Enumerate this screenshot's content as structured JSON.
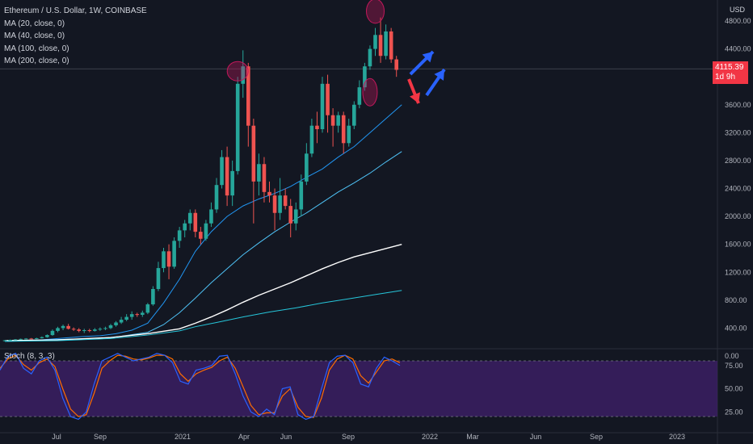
{
  "header": {
    "symbol_title": "Ethereum / U.S. Dollar, 1W, COINBASE",
    "indicators": [
      "MA (20, close, 0)",
      "MA (40, close, 0)",
      "MA (100, close, 0)",
      "MA (200, close, 0)"
    ]
  },
  "price_axis": {
    "currency": "USD",
    "ticks": [
      "4800.00",
      "4400.00",
      "3600.00",
      "3200.00",
      "2800.00",
      "2400.00",
      "2000.00",
      "1600.00",
      "1200.00",
      "800.00",
      "400.00",
      "0.00"
    ],
    "current_price": "4115.39",
    "countdown": "1d 9h"
  },
  "time_axis": {
    "ticks": [
      "Jul",
      "Sep",
      "2021",
      "Apr",
      "Jun",
      "Sep",
      "2022",
      "Mar",
      "Jun",
      "Sep",
      "2023"
    ]
  },
  "oscillator": {
    "label": "Stoch (8, 3, 3)",
    "ticks": [
      "75.00",
      "50.00",
      "25.00"
    ]
  },
  "colors": {
    "background": "#131722",
    "bull": "#26a69a",
    "bear": "#ef5350",
    "ma20": "#2196f3",
    "ma40": "#4fc3f7",
    "ma100": "#ffffff",
    "ma200": "#26c6da",
    "stoch_k": "#2962ff",
    "stoch_d": "#ff6d00",
    "stoch_band": "#3b1e63",
    "annotation_up": "#2962ff",
    "annotation_down": "#f23645",
    "highlight": "#c2185b"
  },
  "chart_data": {
    "type": "candlestick",
    "y_axis_range": [
      0,
      5000
    ],
    "candles": [
      [
        220,
        225,
        210,
        228
      ],
      [
        225,
        232,
        218,
        236
      ],
      [
        232,
        238,
        228,
        242
      ],
      [
        238,
        245,
        232,
        250
      ],
      [
        245,
        250,
        240,
        256
      ],
      [
        250,
        248,
        242,
        258
      ],
      [
        248,
        255,
        240,
        262
      ],
      [
        255,
        270,
        250,
        280
      ],
      [
        270,
        300,
        262,
        310
      ],
      [
        300,
        360,
        290,
        380
      ],
      [
        360,
        400,
        340,
        420
      ],
      [
        400,
        430,
        370,
        450
      ],
      [
        430,
        390,
        380,
        460
      ],
      [
        390,
        380,
        360,
        410
      ],
      [
        380,
        360,
        340,
        400
      ],
      [
        360,
        370,
        330,
        390
      ],
      [
        370,
        360,
        340,
        390
      ],
      [
        360,
        380,
        350,
        400
      ],
      [
        380,
        390,
        360,
        410
      ],
      [
        390,
        400,
        370,
        420
      ],
      [
        400,
        440,
        385,
        460
      ],
      [
        440,
        480,
        420,
        500
      ],
      [
        480,
        520,
        460,
        560
      ],
      [
        520,
        560,
        500,
        600
      ],
      [
        560,
        600,
        520,
        640
      ],
      [
        600,
        590,
        560,
        620
      ],
      [
        590,
        620,
        560,
        650
      ],
      [
        620,
        740,
        600,
        760
      ],
      [
        740,
        960,
        720,
        1000
      ],
      [
        960,
        1260,
        930,
        1350
      ],
      [
        1260,
        1500,
        1200,
        1550
      ],
      [
        1500,
        1280,
        1100,
        1600
      ],
      [
        1280,
        1650,
        1250,
        1700
      ],
      [
        1650,
        1800,
        1550,
        1850
      ],
      [
        1800,
        1900,
        1700,
        1950
      ],
      [
        1900,
        2050,
        1800,
        2100
      ],
      [
        2050,
        1780,
        1700,
        2100
      ],
      [
        1780,
        1680,
        1600,
        1850
      ],
      [
        1680,
        1900,
        1650,
        1950
      ],
      [
        1900,
        2100,
        1850,
        2200
      ],
      [
        2100,
        2450,
        2050,
        2550
      ],
      [
        2450,
        2850,
        2400,
        2950
      ],
      [
        2850,
        2300,
        2150,
        3000
      ],
      [
        2300,
        2650,
        2150,
        2800
      ],
      [
        2650,
        3900,
        2600,
        4000
      ],
      [
        3900,
        4150,
        3700,
        4380
      ],
      [
        4150,
        3300,
        3000,
        4200
      ],
      [
        3300,
        2500,
        1900,
        3400
      ],
      [
        2500,
        2750,
        2300,
        2900
      ],
      [
        2750,
        2350,
        2200,
        2850
      ],
      [
        2350,
        2300,
        2200,
        2500
      ],
      [
        2300,
        2050,
        1800,
        2400
      ],
      [
        2050,
        2300,
        1950,
        2550
      ],
      [
        2300,
        2150,
        2100,
        2400
      ],
      [
        2150,
        1900,
        1700,
        2250
      ],
      [
        1900,
        2100,
        1800,
        2200
      ],
      [
        2100,
        2500,
        2000,
        2600
      ],
      [
        2500,
        2900,
        2450,
        3050
      ],
      [
        2900,
        3300,
        2850,
        3400
      ],
      [
        3300,
        3250,
        3050,
        3500
      ],
      [
        3250,
        3900,
        3200,
        4000
      ],
      [
        3900,
        3450,
        3200,
        4030
      ],
      [
        3450,
        3300,
        3000,
        3550
      ],
      [
        3300,
        3450,
        3200,
        3500
      ],
      [
        3450,
        3050,
        2900,
        3500
      ],
      [
        3050,
        3300,
        3000,
        3400
      ],
      [
        3300,
        3600,
        3250,
        3650
      ],
      [
        3600,
        3850,
        3550,
        3950
      ],
      [
        3850,
        4150,
        3800,
        4200
      ],
      [
        4150,
        4400,
        4100,
        4450
      ],
      [
        4400,
        4600,
        4300,
        4700
      ],
      [
        4600,
        4300,
        4200,
        4850
      ],
      [
        4300,
        4650,
        4250,
        4750
      ],
      [
        4650,
        4250,
        4200,
        4700
      ],
      [
        4250,
        4100,
        4000,
        4300
      ]
    ],
    "ma_lines": {
      "MA20": [
        [
          0,
          210
        ],
        [
          5,
          220
        ],
        [
          10,
          250
        ],
        [
          15,
          280
        ],
        [
          18,
          290
        ],
        [
          21,
          320
        ],
        [
          24,
          370
        ],
        [
          27,
          470
        ],
        [
          30,
          760
        ],
        [
          33,
          1100
        ],
        [
          36,
          1500
        ],
        [
          39,
          1780
        ],
        [
          42,
          2000
        ],
        [
          45,
          2150
        ],
        [
          48,
          2250
        ],
        [
          51,
          2330
        ],
        [
          54,
          2430
        ],
        [
          57,
          2560
        ],
        [
          60,
          2680
        ],
        [
          63,
          2850
        ],
        [
          66,
          3000
        ],
        [
          69,
          3200
        ],
        [
          72,
          3400
        ],
        [
          75,
          3600
        ]
      ],
      "MA40": [
        [
          0,
          220
        ],
        [
          10,
          235
        ],
        [
          20,
          260
        ],
        [
          27,
          340
        ],
        [
          30,
          450
        ],
        [
          33,
          620
        ],
        [
          36,
          830
        ],
        [
          39,
          1050
        ],
        [
          42,
          1250
        ],
        [
          45,
          1450
        ],
        [
          48,
          1620
        ],
        [
          51,
          1780
        ],
        [
          54,
          1920
        ],
        [
          57,
          2050
        ],
        [
          60,
          2200
        ],
        [
          63,
          2350
        ],
        [
          66,
          2480
        ],
        [
          69,
          2620
        ],
        [
          72,
          2780
        ],
        [
          75,
          2930
        ]
      ],
      "MA100": [
        [
          0,
          220
        ],
        [
          10,
          230
        ],
        [
          20,
          265
        ],
        [
          27,
          320
        ],
        [
          33,
          390
        ],
        [
          36,
          470
        ],
        [
          39,
          560
        ],
        [
          42,
          660
        ],
        [
          45,
          770
        ],
        [
          48,
          870
        ],
        [
          51,
          960
        ],
        [
          54,
          1050
        ],
        [
          57,
          1150
        ],
        [
          60,
          1250
        ],
        [
          63,
          1340
        ],
        [
          66,
          1420
        ],
        [
          70,
          1500
        ],
        [
          75,
          1600
        ]
      ],
      "MA200": [
        [
          0,
          210
        ],
        [
          10,
          220
        ],
        [
          20,
          250
        ],
        [
          27,
          300
        ],
        [
          33,
          360
        ],
        [
          36,
          420
        ],
        [
          40,
          480
        ],
        [
          45,
          560
        ],
        [
          50,
          630
        ],
        [
          55,
          690
        ],
        [
          60,
          760
        ],
        [
          65,
          820
        ],
        [
          70,
          880
        ],
        [
          75,
          940
        ]
      ]
    },
    "stochastic": {
      "k": [
        70,
        85,
        88,
        72,
        66,
        80,
        84,
        70,
        40,
        20,
        17,
        25,
        55,
        80,
        84,
        88,
        84,
        80,
        82,
        84,
        88,
        86,
        78,
        58,
        55,
        70,
        72,
        75,
        85,
        86,
        66,
        42,
        25,
        20,
        28,
        22,
        50,
        52,
        22,
        17,
        20,
        50,
        78,
        85,
        86,
        78,
        55,
        52,
        72,
        84,
        80,
        75
      ],
      "d": [
        72,
        82,
        86,
        76,
        70,
        78,
        82,
        74,
        50,
        28,
        20,
        22,
        45,
        72,
        80,
        86,
        85,
        82,
        81,
        83,
        86,
        86,
        82,
        66,
        58,
        66,
        70,
        73,
        80,
        84,
        72,
        52,
        32,
        22,
        24,
        24,
        42,
        50,
        30,
        20,
        19,
        40,
        70,
        82,
        86,
        82,
        64,
        56,
        68,
        80,
        82,
        78
      ]
    },
    "annotations": {
      "highlight_ellipses": 3,
      "arrows_up": 2,
      "arrows_down": 1
    }
  }
}
